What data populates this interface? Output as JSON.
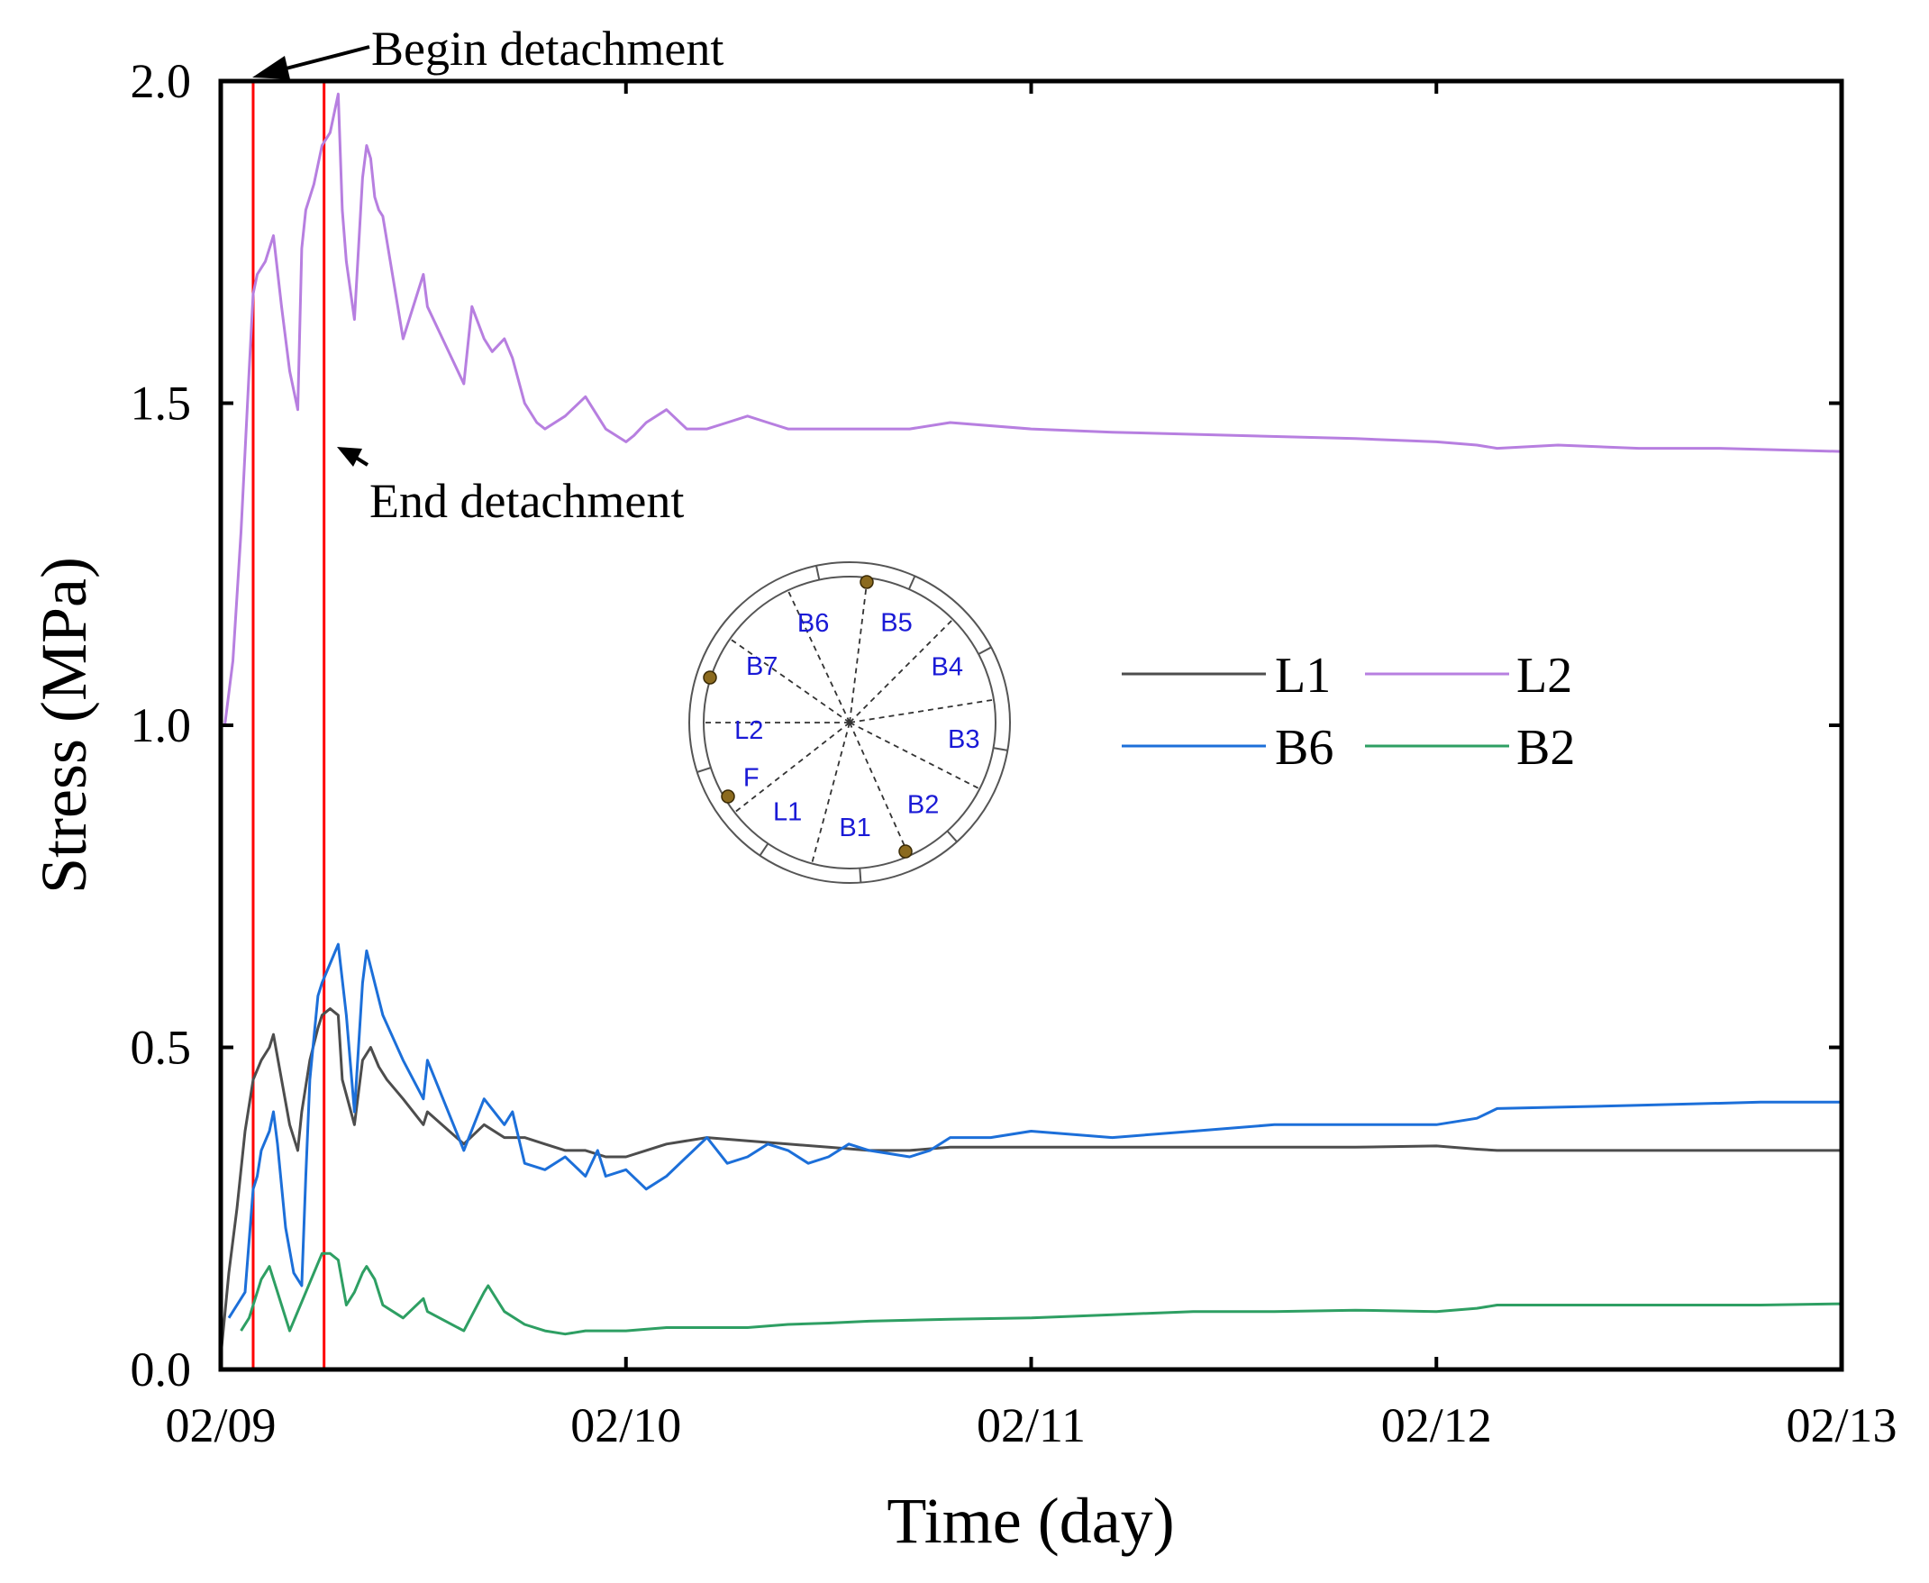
{
  "chart_data": {
    "type": "line",
    "xlabel": "Time (day)",
    "ylabel": "Stress (MPa)",
    "xlim": [
      0,
      4
    ],
    "ylim": [
      0,
      2.0
    ],
    "xticks": [
      {
        "value": 0,
        "label": "02/09"
      },
      {
        "value": 1,
        "label": "02/10"
      },
      {
        "value": 2,
        "label": "02/11"
      },
      {
        "value": 3,
        "label": "02/12"
      },
      {
        "value": 4,
        "label": "02/13"
      }
    ],
    "yticks": [
      {
        "value": 0.0,
        "label": "0.0"
      },
      {
        "value": 0.5,
        "label": "0.5"
      },
      {
        "value": 1.0,
        "label": "1.0"
      },
      {
        "value": 1.5,
        "label": "1.5"
      },
      {
        "value": 2.0,
        "label": "2.0"
      }
    ],
    "vlines": [
      {
        "x": 0.08,
        "color": "#ff0000"
      },
      {
        "x": 0.255,
        "color": "#ff0000"
      }
    ],
    "annotations": [
      {
        "text": "Begin detachment",
        "x": 0.08,
        "y": 2.0
      },
      {
        "text": "End detachment",
        "x": 0.29,
        "y": 1.42
      }
    ],
    "legend": [
      {
        "name": "L1",
        "color": "#4d4d4d"
      },
      {
        "name": "L2",
        "color": "#b77fe0"
      },
      {
        "name": "B6",
        "color": "#1c6fd9"
      },
      {
        "name": "B2",
        "color": "#2e9f63"
      }
    ],
    "series": [
      {
        "name": "L2",
        "color": "#b77fe0",
        "x": [
          0.01,
          0.03,
          0.05,
          0.07,
          0.08,
          0.09,
          0.11,
          0.13,
          0.15,
          0.17,
          0.19,
          0.2,
          0.21,
          0.23,
          0.25,
          0.27,
          0.29,
          0.3,
          0.31,
          0.33,
          0.35,
          0.36,
          0.37,
          0.38,
          0.39,
          0.4,
          0.45,
          0.5,
          0.51,
          0.6,
          0.62,
          0.65,
          0.67,
          0.7,
          0.72,
          0.75,
          0.78,
          0.8,
          0.85,
          0.9,
          0.95,
          1.0,
          1.02,
          1.05,
          1.1,
          1.15,
          1.2,
          1.25,
          1.3,
          1.35,
          1.4,
          1.5,
          1.6,
          1.7,
          1.8,
          2.0,
          2.2,
          2.5,
          2.8,
          3.0,
          3.1,
          3.15,
          3.3,
          3.5,
          3.7,
          4.0
        ],
        "y": [
          1.0,
          1.1,
          1.3,
          1.55,
          1.67,
          1.7,
          1.72,
          1.76,
          1.65,
          1.55,
          1.49,
          1.74,
          1.8,
          1.84,
          1.9,
          1.92,
          1.98,
          1.8,
          1.72,
          1.63,
          1.85,
          1.9,
          1.88,
          1.82,
          1.8,
          1.79,
          1.6,
          1.7,
          1.65,
          1.53,
          1.65,
          1.6,
          1.58,
          1.6,
          1.57,
          1.5,
          1.47,
          1.46,
          1.48,
          1.51,
          1.46,
          1.44,
          1.45,
          1.47,
          1.49,
          1.46,
          1.46,
          1.47,
          1.48,
          1.47,
          1.46,
          1.46,
          1.46,
          1.46,
          1.47,
          1.46,
          1.455,
          1.45,
          1.445,
          1.44,
          1.435,
          1.43,
          1.435,
          1.43,
          1.43,
          1.425
        ]
      },
      {
        "name": "L1",
        "color": "#4d4d4d",
        "x": [
          0.0,
          0.02,
          0.04,
          0.06,
          0.08,
          0.1,
          0.12,
          0.13,
          0.15,
          0.17,
          0.19,
          0.2,
          0.22,
          0.24,
          0.25,
          0.27,
          0.29,
          0.3,
          0.33,
          0.35,
          0.37,
          0.39,
          0.41,
          0.45,
          0.5,
          0.51,
          0.6,
          0.65,
          0.7,
          0.75,
          0.8,
          0.85,
          0.9,
          0.95,
          1.0,
          1.05,
          1.1,
          1.2,
          1.3,
          1.4,
          1.5,
          1.6,
          1.7,
          1.8,
          1.9,
          2.0,
          2.2,
          2.5,
          2.8,
          3.0,
          3.1,
          3.15,
          3.3,
          3.5,
          3.7,
          4.0
        ],
        "y": [
          0.02,
          0.15,
          0.25,
          0.37,
          0.45,
          0.48,
          0.5,
          0.52,
          0.45,
          0.38,
          0.34,
          0.4,
          0.48,
          0.53,
          0.55,
          0.56,
          0.55,
          0.45,
          0.38,
          0.48,
          0.5,
          0.47,
          0.45,
          0.42,
          0.38,
          0.4,
          0.35,
          0.38,
          0.36,
          0.36,
          0.35,
          0.34,
          0.34,
          0.33,
          0.33,
          0.34,
          0.35,
          0.36,
          0.355,
          0.35,
          0.345,
          0.34,
          0.34,
          0.345,
          0.345,
          0.345,
          0.345,
          0.345,
          0.345,
          0.347,
          0.342,
          0.34,
          0.34,
          0.34,
          0.34,
          0.34
        ]
      },
      {
        "name": "B6",
        "color": "#1c6fd9",
        "x": [
          0.02,
          0.04,
          0.06,
          0.07,
          0.08,
          0.09,
          0.1,
          0.12,
          0.13,
          0.14,
          0.16,
          0.18,
          0.2,
          0.21,
          0.22,
          0.24,
          0.25,
          0.27,
          0.29,
          0.31,
          0.33,
          0.35,
          0.36,
          0.38,
          0.4,
          0.45,
          0.5,
          0.51,
          0.6,
          0.65,
          0.7,
          0.72,
          0.75,
          0.8,
          0.85,
          0.9,
          0.93,
          0.95,
          1.0,
          1.05,
          1.1,
          1.15,
          1.2,
          1.25,
          1.3,
          1.35,
          1.4,
          1.45,
          1.5,
          1.55,
          1.6,
          1.7,
          1.75,
          1.8,
          1.9,
          2.0,
          2.2,
          2.4,
          2.6,
          2.8,
          3.0,
          3.1,
          3.15,
          3.5,
          3.8,
          4.0
        ],
        "y": [
          0.08,
          0.1,
          0.12,
          0.2,
          0.28,
          0.3,
          0.34,
          0.37,
          0.4,
          0.35,
          0.22,
          0.15,
          0.13,
          0.3,
          0.45,
          0.58,
          0.6,
          0.63,
          0.66,
          0.55,
          0.4,
          0.6,
          0.65,
          0.6,
          0.55,
          0.48,
          0.42,
          0.48,
          0.34,
          0.42,
          0.38,
          0.4,
          0.32,
          0.31,
          0.33,
          0.3,
          0.34,
          0.3,
          0.31,
          0.28,
          0.3,
          0.33,
          0.36,
          0.32,
          0.33,
          0.35,
          0.34,
          0.32,
          0.33,
          0.35,
          0.34,
          0.33,
          0.34,
          0.36,
          0.36,
          0.37,
          0.36,
          0.37,
          0.38,
          0.38,
          0.38,
          0.39,
          0.405,
          0.41,
          0.415,
          0.415
        ]
      },
      {
        "name": "B2",
        "color": "#2e9f63",
        "x": [
          0.05,
          0.07,
          0.09,
          0.1,
          0.11,
          0.12,
          0.13,
          0.14,
          0.15,
          0.16,
          0.17,
          0.25,
          0.27,
          0.29,
          0.31,
          0.33,
          0.35,
          0.36,
          0.38,
          0.4,
          0.45,
          0.5,
          0.51,
          0.6,
          0.65,
          0.66,
          0.7,
          0.75,
          0.8,
          0.85,
          0.9,
          0.95,
          1.0,
          1.1,
          1.2,
          1.3,
          1.4,
          1.5,
          1.6,
          1.8,
          2.0,
          2.2,
          2.4,
          2.6,
          2.8,
          3.0,
          3.1,
          3.15,
          3.3,
          3.5,
          3.8,
          4.0
        ],
        "y": [
          0.06,
          0.08,
          0.12,
          0.14,
          0.15,
          0.16,
          0.14,
          0.12,
          0.1,
          0.08,
          0.06,
          0.18,
          0.18,
          0.17,
          0.1,
          0.12,
          0.15,
          0.16,
          0.14,
          0.1,
          0.08,
          0.11,
          0.09,
          0.06,
          0.12,
          0.13,
          0.09,
          0.07,
          0.06,
          0.055,
          0.06,
          0.06,
          0.06,
          0.065,
          0.065,
          0.065,
          0.07,
          0.072,
          0.075,
          0.078,
          0.08,
          0.085,
          0.09,
          0.09,
          0.092,
          0.09,
          0.095,
          0.1,
          0.1,
          0.1,
          0.1,
          0.102
        ]
      }
    ],
    "inset": {
      "segments": [
        "B5",
        "B4",
        "B3",
        "B2",
        "B1",
        "L1",
        "F",
        "L2",
        "B7",
        "B6"
      ]
    }
  }
}
